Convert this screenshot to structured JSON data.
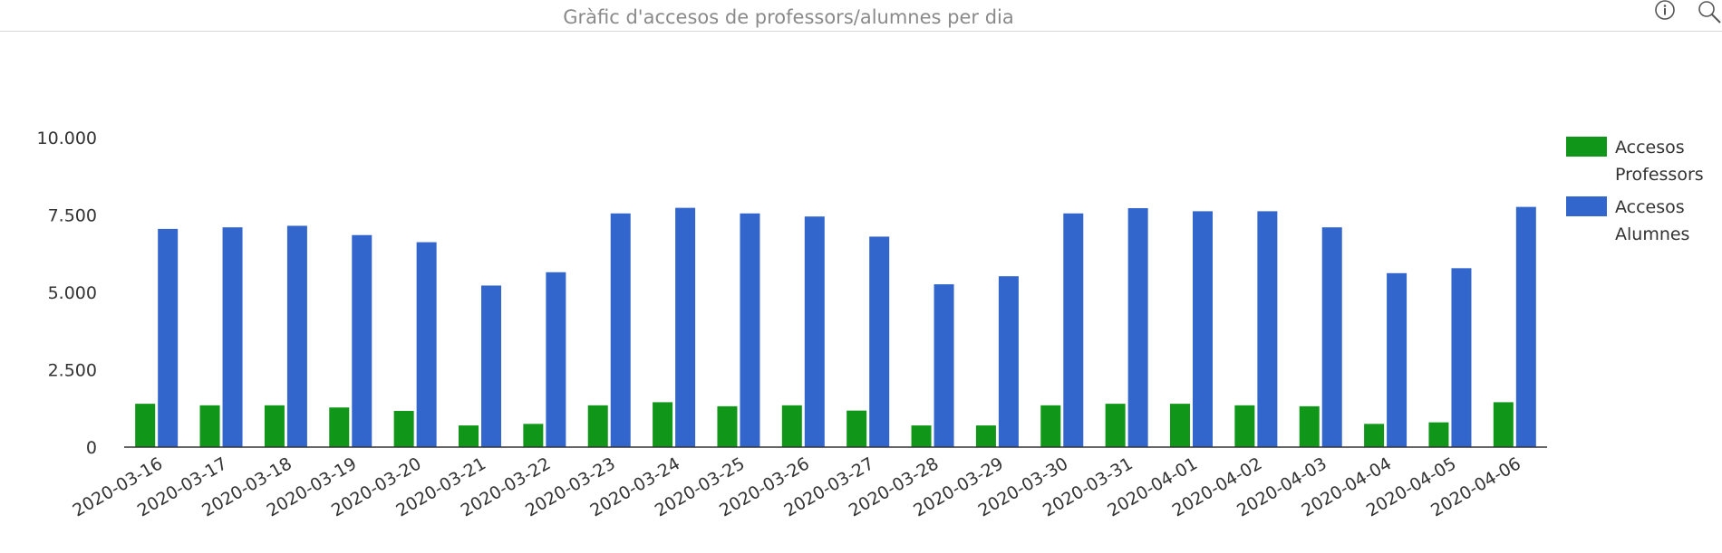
{
  "header": {
    "title": "Gràfic d'accesos de professors/alumnes per dia",
    "icons": [
      "info-icon",
      "search-zoom-icon"
    ]
  },
  "chart_data": {
    "type": "bar",
    "title": "Gràfic d'accesos de professors/alumnes per dia",
    "xlabel": "",
    "ylabel": "",
    "ylim": [
      0,
      10000
    ],
    "yticks": [
      "0",
      "2.500",
      "5.000",
      "7.500",
      "10.000"
    ],
    "legend_position": "right",
    "grid": false,
    "categories": [
      "2020-03-16",
      "2020-03-17",
      "2020-03-18",
      "2020-03-19",
      "2020-03-20",
      "2020-03-21",
      "2020-03-22",
      "2020-03-23",
      "2020-03-24",
      "2020-03-25",
      "2020-03-26",
      "2020-03-27",
      "2020-03-28",
      "2020-03-29",
      "2020-03-30",
      "2020-03-31",
      "2020-04-01",
      "2020-04-02",
      "2020-04-03",
      "2020-04-04",
      "2020-04-05",
      "2020-04-06"
    ],
    "series": [
      {
        "name": "Accesos Professors",
        "legend_lines": [
          "Accesos",
          "Professors"
        ],
        "color": "#109618",
        "values": [
          1400,
          1350,
          1350,
          1280,
          1170,
          700,
          750,
          1350,
          1450,
          1320,
          1350,
          1180,
          700,
          700,
          1350,
          1400,
          1400,
          1350,
          1320,
          750,
          800,
          1450
        ]
      },
      {
        "name": "Accesos Alumnes",
        "legend_lines": [
          "Accesos",
          "Alumnes"
        ],
        "color": "#3366cc",
        "values": [
          7050,
          7100,
          7150,
          6850,
          6620,
          5220,
          5650,
          7550,
          7730,
          7550,
          7450,
          6800,
          5260,
          5520,
          7550,
          7720,
          7620,
          7620,
          7100,
          5620,
          5780,
          7760
        ]
      }
    ]
  }
}
